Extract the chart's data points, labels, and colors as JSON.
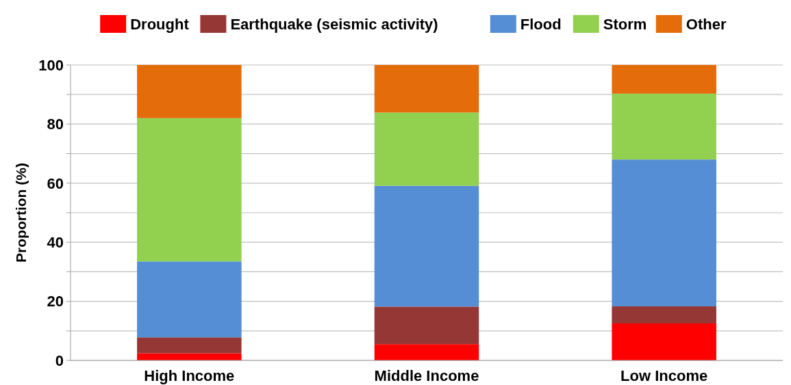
{
  "chart_data": {
    "type": "bar",
    "stacked": true,
    "ylabel": "Proportion (%)",
    "categories": [
      "High Income",
      "Middle Income",
      "Low Income"
    ],
    "series": [
      {
        "name": "Drought",
        "color": "#ff0000",
        "values": [
          2.4,
          5.5,
          12.5
        ]
      },
      {
        "name": "Earthquake (seismic activity)",
        "color": "#953735",
        "values": [
          5.4,
          12.7,
          5.8
        ]
      },
      {
        "name": "Flood",
        "color": "#558ed5",
        "values": [
          25.7,
          40.9,
          49.7
        ]
      },
      {
        "name": "Storm",
        "color": "#92d050",
        "values": [
          48.5,
          24.8,
          22.3
        ]
      },
      {
        "name": "Other",
        "color": "#e46c0a",
        "values": [
          18.0,
          16.1,
          9.7
        ]
      }
    ],
    "ylim": [
      0,
      100
    ],
    "yticks": [
      0,
      {
        "value": 10,
        "label": null
      },
      20,
      {
        "value": 30,
        "label": null
      },
      40,
      {
        "value": 50,
        "label": null
      },
      60,
      {
        "value": 70,
        "label": null
      },
      80,
      {
        "value": 90,
        "label": null
      },
      100
    ],
    "grid": "y",
    "legend": "top"
  }
}
